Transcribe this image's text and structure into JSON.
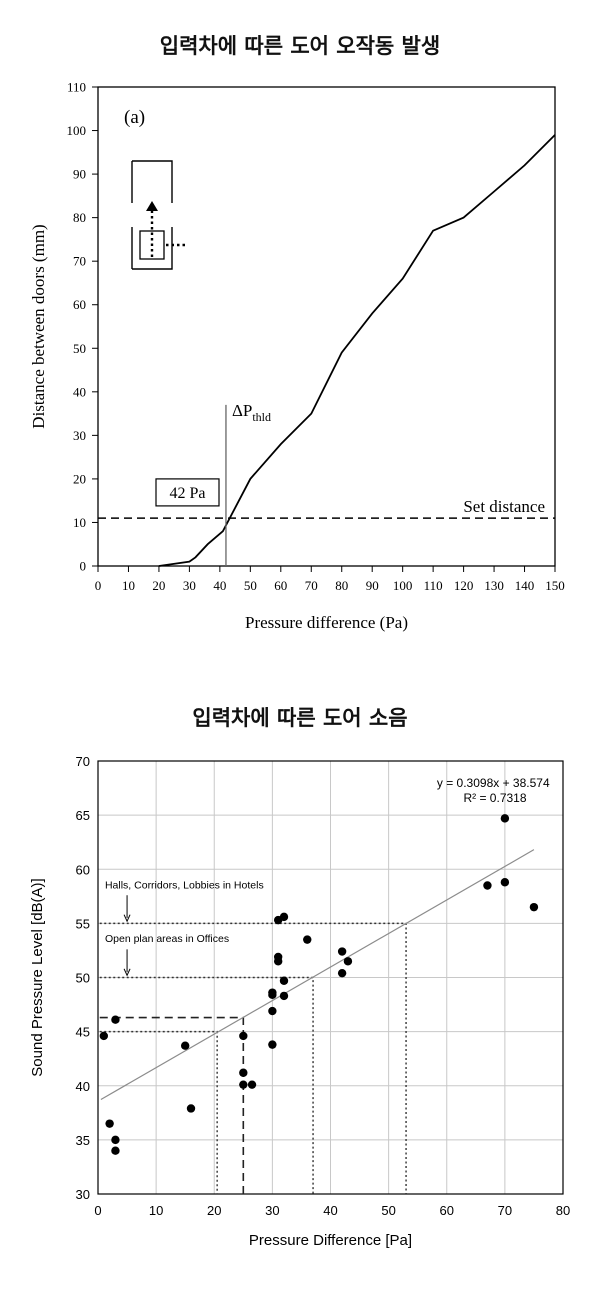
{
  "titles": {
    "chart1": "입력차에 따른 도어 오작동 발생",
    "chart2": "입력차에 따른 도어 소음"
  },
  "chart_data": [
    {
      "type": "line",
      "title": "입력차에 따른 도어 오작동 발생",
      "panel_label": "(a)",
      "xlabel": "Pressure difference (Pa)",
      "ylabel": "Distance between doors  (mm)",
      "xlim": [
        0,
        150
      ],
      "ylim": [
        0,
        110
      ],
      "xticks": [
        0,
        10,
        20,
        30,
        40,
        50,
        60,
        70,
        80,
        90,
        100,
        110,
        120,
        130,
        140,
        150
      ],
      "yticks": [
        0,
        10,
        20,
        30,
        40,
        50,
        60,
        70,
        80,
        90,
        100,
        110
      ],
      "grid": false,
      "series": [
        {
          "x": [
            20,
            30,
            32,
            36,
            41,
            50,
            60,
            70,
            80,
            90,
            100,
            110,
            120,
            130,
            140,
            150
          ],
          "y": [
            0,
            1,
            2,
            5,
            8,
            20,
            28,
            35,
            49,
            58,
            66,
            77,
            80,
            86,
            92,
            99
          ]
        }
      ],
      "set_distance": {
        "label": "Set distance",
        "y": 11
      },
      "threshold": {
        "label_main": "ΔP",
        "label_sub": "thld",
        "x": 42
      },
      "threshold_box": "42 Pa",
      "colors": {
        "line": "#000000",
        "threshold": "#666666"
      }
    },
    {
      "type": "scatter",
      "title": "입력차에 따른 도어 소음",
      "xlabel": "Pressure Difference [Pa]",
      "ylabel": "Sound Pressure Level [dB(A)]",
      "xlim": [
        0,
        80
      ],
      "ylim": [
        30,
        70
      ],
      "xticks": [
        0,
        10,
        20,
        30,
        40,
        50,
        60,
        70,
        80
      ],
      "yticks": [
        30,
        35,
        40,
        45,
        50,
        55,
        60,
        65,
        70
      ],
      "grid": true,
      "points": [
        [
          1,
          44.6
        ],
        [
          2,
          36.5
        ],
        [
          3,
          35.0
        ],
        [
          3,
          34.0
        ],
        [
          3,
          46.1
        ],
        [
          15,
          43.7
        ],
        [
          16,
          37.9
        ],
        [
          25,
          44.6
        ],
        [
          25,
          41.2
        ],
        [
          25,
          40.1
        ],
        [
          26.5,
          40.1
        ],
        [
          30,
          48.6
        ],
        [
          30,
          48.4
        ],
        [
          30,
          46.9
        ],
        [
          30,
          43.8
        ],
        [
          31,
          51.9
        ],
        [
          31,
          51.5
        ],
        [
          31,
          55.3
        ],
        [
          32,
          55.6
        ],
        [
          32,
          49.7
        ],
        [
          32,
          48.3
        ],
        [
          36,
          53.5
        ],
        [
          42,
          52.4
        ],
        [
          42,
          50.4
        ],
        [
          43,
          51.5
        ],
        [
          67,
          58.5
        ],
        [
          70,
          64.7
        ],
        [
          70,
          58.8
        ],
        [
          75,
          56.5
        ]
      ],
      "trendline": {
        "slope": 0.3098,
        "intercept": 38.574,
        "x_range": [
          0.5,
          75
        ]
      },
      "equation": "y = 0.3098x + 38.574",
      "r_squared": "R² = 0.7318",
      "annotations": {
        "halls": {
          "text": "Halls, Corridors, Lobbies in Hotels",
          "y": 55,
          "x_end": 53
        },
        "offices": {
          "text": "Open plan areas in Offices",
          "y": 50,
          "x_end": 37
        },
        "guide_45": {
          "y": 45,
          "x_end": 20.5
        },
        "guide_46": {
          "y": 46.3,
          "x_end": 25
        }
      },
      "colors": {
        "point": "#000000",
        "trendline": "#8c8c8c",
        "grid": "#c8c8c8"
      }
    }
  ]
}
